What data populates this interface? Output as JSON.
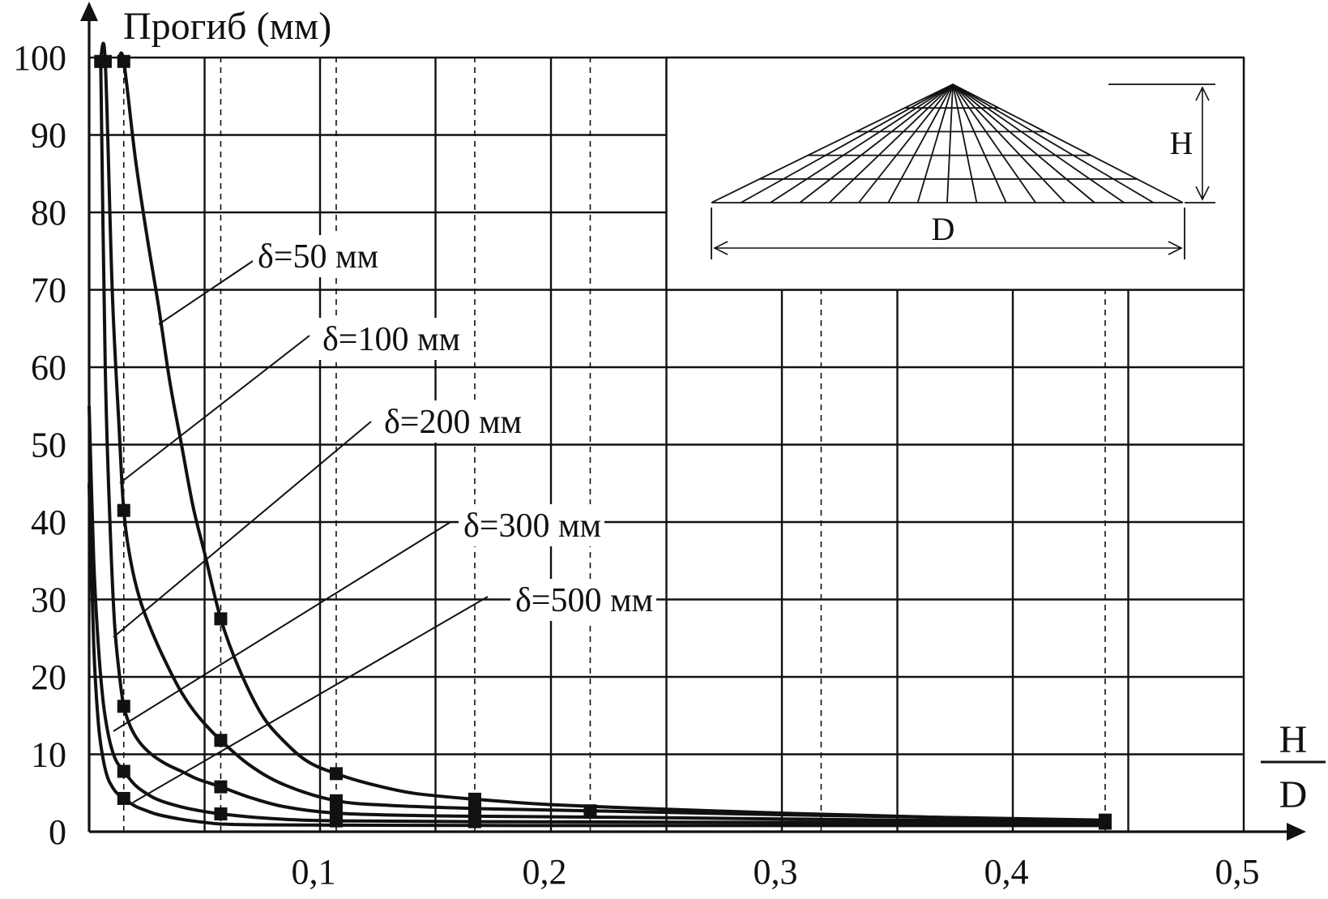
{
  "chart_data": {
    "type": "line",
    "title": "",
    "ylabel": "Прогиб (мм)",
    "xlabel": {
      "numerator": "H",
      "denominator": "D"
    },
    "xlim": [
      0,
      0.5
    ],
    "ylim": [
      0,
      100
    ],
    "x_ticks": [
      {
        "value": 0.1,
        "label": "0,1"
      },
      {
        "value": 0.2,
        "label": "0,2"
      },
      {
        "value": 0.3,
        "label": "0,3"
      },
      {
        "value": 0.4,
        "label": "0,4"
      },
      {
        "value": 0.5,
        "label": "0,5"
      }
    ],
    "y_ticks": [
      {
        "value": 0,
        "label": "0"
      },
      {
        "value": 10,
        "label": "10"
      },
      {
        "value": 20,
        "label": "20"
      },
      {
        "value": 30,
        "label": "30"
      },
      {
        "value": 40,
        "label": "40"
      },
      {
        "value": 50,
        "label": "50"
      },
      {
        "value": 60,
        "label": "60"
      },
      {
        "value": 70,
        "label": "70"
      },
      {
        "value": 80,
        "label": "80"
      },
      {
        "value": 90,
        "label": "90"
      },
      {
        "value": 100,
        "label": "100"
      }
    ],
    "grid": {
      "solid_x": [
        0.05,
        0.1,
        0.15,
        0.2,
        0.25,
        0.3,
        0.35,
        0.4,
        0.45,
        0.5
      ],
      "dashed_x": [
        0.015,
        0.057,
        0.107,
        0.167,
        0.217,
        0.317,
        0.44
      ],
      "solid_y": [
        10,
        20,
        30,
        40,
        50,
        60,
        70,
        80,
        90,
        100
      ]
    },
    "series": [
      {
        "name": "δ=50 мм",
        "curve": [
          [
            0.013,
            100
          ],
          [
            0.015,
            99.5
          ],
          [
            0.02,
            87
          ],
          [
            0.025,
            77
          ],
          [
            0.03,
            68
          ],
          [
            0.035,
            58
          ],
          [
            0.04,
            50
          ],
          [
            0.045,
            42
          ],
          [
            0.05,
            36
          ],
          [
            0.057,
            27.5
          ],
          [
            0.065,
            21
          ],
          [
            0.075,
            15
          ],
          [
            0.085,
            11.5
          ],
          [
            0.095,
            9
          ],
          [
            0.107,
            7.5
          ],
          [
            0.12,
            6.3
          ],
          [
            0.14,
            5
          ],
          [
            0.167,
            4.2
          ],
          [
            0.2,
            3.5
          ],
          [
            0.25,
            2.9
          ],
          [
            0.3,
            2.4
          ],
          [
            0.35,
            2
          ],
          [
            0.4,
            1.6
          ],
          [
            0.44,
            1.3
          ]
        ],
        "markers": [
          [
            0.015,
            99.5
          ],
          [
            0.057,
            27.5
          ],
          [
            0.107,
            7.5
          ],
          [
            0.167,
            4.2
          ],
          [
            0.44,
            1.3
          ]
        ]
      },
      {
        "name": "δ=100 мм",
        "curve": [
          [
            0.005,
            100
          ],
          [
            0.007,
            99.5
          ],
          [
            0.01,
            70
          ],
          [
            0.013,
            52
          ],
          [
            0.015,
            41.5
          ],
          [
            0.018,
            35
          ],
          [
            0.022,
            30
          ],
          [
            0.027,
            26
          ],
          [
            0.033,
            22
          ],
          [
            0.04,
            18
          ],
          [
            0.047,
            15
          ],
          [
            0.057,
            11.8
          ],
          [
            0.07,
            8.5
          ],
          [
            0.085,
            6
          ],
          [
            0.107,
            4
          ],
          [
            0.13,
            3.4
          ],
          [
            0.167,
            3
          ],
          [
            0.217,
            2.7
          ],
          [
            0.3,
            2.2
          ],
          [
            0.38,
            1.8
          ],
          [
            0.44,
            1.5
          ]
        ],
        "markers": [
          [
            0.007,
            99.5
          ],
          [
            0.015,
            41.5
          ],
          [
            0.057,
            11.8
          ],
          [
            0.107,
            4
          ],
          [
            0.167,
            3
          ],
          [
            0.217,
            2.7
          ],
          [
            0.44,
            1.5
          ]
        ]
      },
      {
        "name": "δ=200 мм",
        "curve": [
          [
            0.005,
            99.5
          ],
          [
            0.007,
            60
          ],
          [
            0.009,
            40
          ],
          [
            0.011,
            27
          ],
          [
            0.013,
            20.5
          ],
          [
            0.015,
            16.2
          ],
          [
            0.018,
            13.5
          ],
          [
            0.022,
            11.5
          ],
          [
            0.027,
            10
          ],
          [
            0.033,
            8.8
          ],
          [
            0.04,
            7.8
          ],
          [
            0.047,
            6.8
          ],
          [
            0.057,
            5.8
          ],
          [
            0.07,
            4.4
          ],
          [
            0.085,
            3.2
          ],
          [
            0.107,
            2.4
          ],
          [
            0.14,
            2.1
          ],
          [
            0.167,
            2
          ],
          [
            0.25,
            1.8
          ],
          [
            0.35,
            1.5
          ],
          [
            0.44,
            1.3
          ]
        ],
        "markers": [
          [
            0.005,
            99.5
          ],
          [
            0.015,
            16.2
          ],
          [
            0.057,
            5.8
          ],
          [
            0.107,
            2.4
          ],
          [
            0.167,
            2
          ],
          [
            0.44,
            1.3
          ]
        ]
      },
      {
        "name": "δ=300 мм",
        "curve": [
          [
            0,
            55
          ],
          [
            0.002,
            35
          ],
          [
            0.004,
            24
          ],
          [
            0.006,
            17
          ],
          [
            0.008,
            13
          ],
          [
            0.01,
            10.5
          ],
          [
            0.012,
            9
          ],
          [
            0.015,
            7.8
          ],
          [
            0.02,
            6
          ],
          [
            0.025,
            4.9
          ],
          [
            0.03,
            4.1
          ],
          [
            0.04,
            3.2
          ],
          [
            0.05,
            2.6
          ],
          [
            0.057,
            2.3
          ],
          [
            0.07,
            1.9
          ],
          [
            0.085,
            1.6
          ],
          [
            0.107,
            1.4
          ],
          [
            0.167,
            1.3
          ],
          [
            0.3,
            1.2
          ],
          [
            0.44,
            1.1
          ]
        ],
        "markers": [
          [
            0.015,
            7.8
          ],
          [
            0.057,
            2.3
          ],
          [
            0.107,
            1.4
          ],
          [
            0.167,
            1.3
          ],
          [
            0.44,
            1.1
          ]
        ]
      },
      {
        "name": "δ=500 мм",
        "curve": [
          [
            0,
            45
          ],
          [
            0.002,
            24
          ],
          [
            0.004,
            14
          ],
          [
            0.006,
            9.5
          ],
          [
            0.008,
            7
          ],
          [
            0.01,
            5.8
          ],
          [
            0.012,
            5
          ],
          [
            0.015,
            4.3
          ],
          [
            0.02,
            3.3
          ],
          [
            0.025,
            2.7
          ],
          [
            0.03,
            2.2
          ],
          [
            0.04,
            1.6
          ],
          [
            0.05,
            1.2
          ],
          [
            0.057,
            1
          ],
          [
            0.07,
            0.9
          ],
          [
            0.107,
            0.85
          ],
          [
            0.2,
            0.8
          ],
          [
            0.3,
            0.8
          ],
          [
            0.44,
            0.8
          ]
        ],
        "markers": [
          [
            0.015,
            4.3
          ]
        ]
      }
    ],
    "inset": {
      "height_label": "H",
      "diameter_label": "D"
    }
  }
}
